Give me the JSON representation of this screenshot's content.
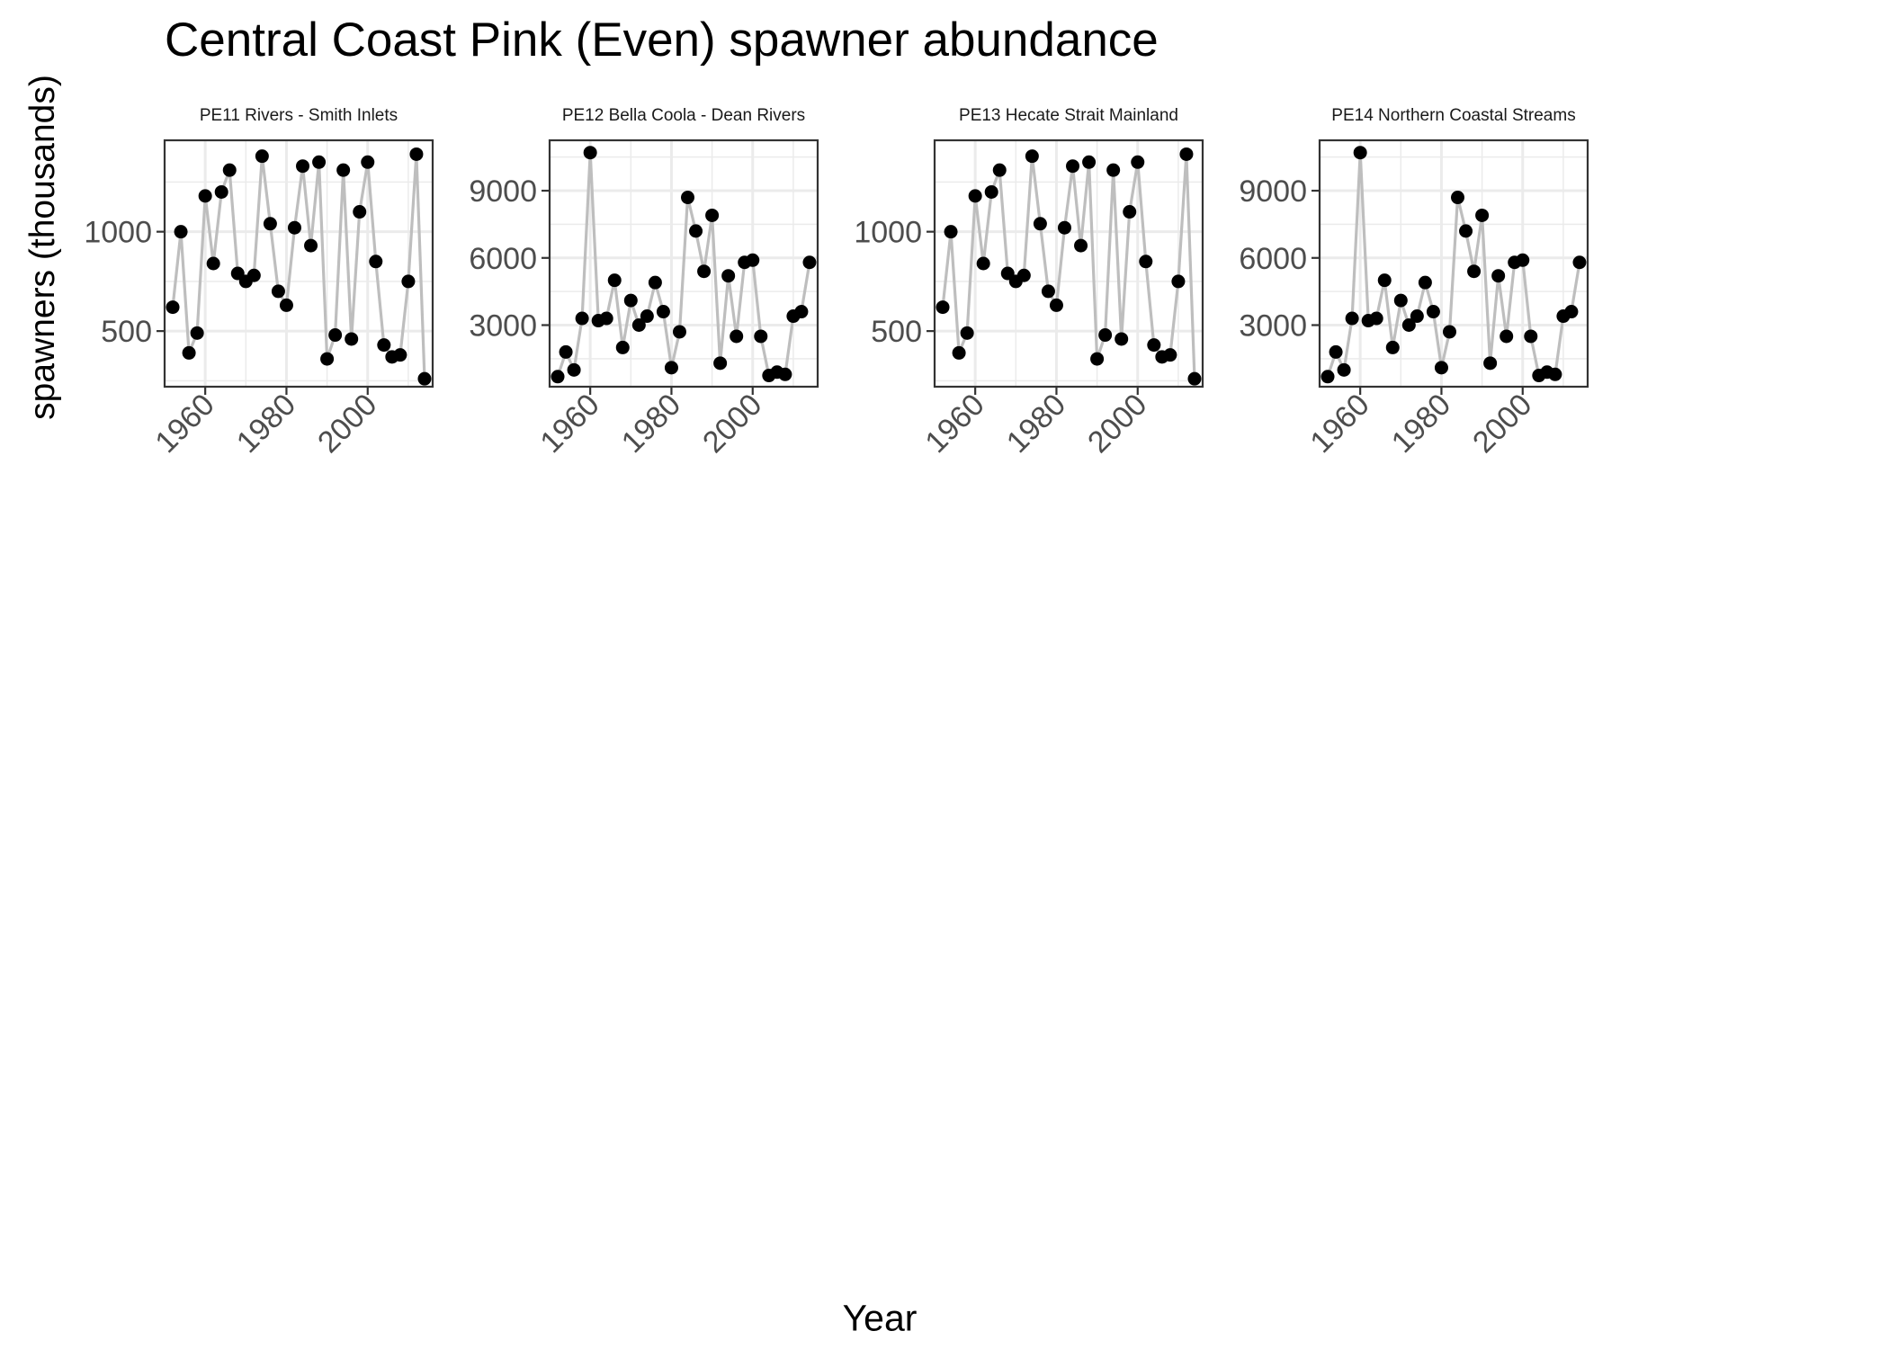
{
  "title": "Central Coast Pink (Even) spawner abundance",
  "xlabel": "Year",
  "ylabel": "spawners (thousands)",
  "colors": {
    "line": "#BEBEBE",
    "point": "#000000",
    "grid": "#EBEBEB",
    "panel_border": "#333333",
    "tick_text": "#4D4D4D",
    "strip_text": "#1A1A1A"
  },
  "chart_data": [
    {
      "type": "line",
      "panel": "PE11 Rivers - Smith Inlets",
      "xlim": [
        1950,
        2016
      ],
      "ylim": [
        220,
        1460
      ],
      "x_ticks": [
        1960,
        1980,
        2000
      ],
      "y_ticks": [
        500,
        1000
      ],
      "x": [
        1952,
        1954,
        1956,
        1958,
        1960,
        1962,
        1964,
        1966,
        1968,
        1970,
        1972,
        1974,
        1976,
        1978,
        1980,
        1982,
        1984,
        1986,
        1988,
        1990,
        1992,
        1994,
        1996,
        1998,
        2000,
        2002,
        2004,
        2006,
        2008,
        2010,
        2012,
        2014
      ],
      "y": [
        620,
        1000,
        390,
        490,
        1180,
        840,
        1200,
        1310,
        790,
        750,
        780,
        1380,
        1040,
        700,
        630,
        1020,
        1330,
        930,
        1350,
        360,
        480,
        1310,
        460,
        1100,
        1350,
        850,
        430,
        370,
        380,
        750,
        1390,
        260
      ]
    },
    {
      "type": "line",
      "panel": "PE12 Bella Coola - Dean Rivers",
      "xlim": [
        1950,
        2016
      ],
      "ylim": [
        250,
        11250
      ],
      "x_ticks": [
        1960,
        1980,
        2000
      ],
      "y_ticks": [
        3000,
        6000,
        9000
      ],
      "x": [
        1952,
        1954,
        1956,
        1958,
        1960,
        1962,
        1964,
        1966,
        1968,
        1970,
        1972,
        1974,
        1976,
        1978,
        1980,
        1982,
        1984,
        1986,
        1988,
        1990,
        1992,
        1994,
        1996,
        1998,
        2000,
        2002,
        2004,
        2006,
        2008,
        2010,
        2012,
        2014
      ],
      "y": [
        700,
        1800,
        1000,
        3300,
        10700,
        3200,
        3300,
        5000,
        2000,
        4100,
        3000,
        3400,
        4900,
        3600,
        1100,
        2700,
        8700,
        7200,
        5400,
        7900,
        1300,
        5200,
        2500,
        5800,
        5900,
        2500,
        750,
        900,
        800,
        3400,
        3600,
        5800
      ]
    },
    {
      "type": "line",
      "panel": "PE13 Hecate Strait Mainland",
      "xlim": [
        1950,
        2016
      ],
      "ylim": [
        220,
        1460
      ],
      "x_ticks": [
        1960,
        1980,
        2000
      ],
      "y_ticks": [
        500,
        1000
      ],
      "x": [
        1952,
        1954,
        1956,
        1958,
        1960,
        1962,
        1964,
        1966,
        1968,
        1970,
        1972,
        1974,
        1976,
        1978,
        1980,
        1982,
        1984,
        1986,
        1988,
        1990,
        1992,
        1994,
        1996,
        1998,
        2000,
        2002,
        2004,
        2006,
        2008,
        2010,
        2012,
        2014
      ],
      "y": [
        620,
        1000,
        390,
        490,
        1180,
        840,
        1200,
        1310,
        790,
        750,
        780,
        1380,
        1040,
        700,
        630,
        1020,
        1330,
        930,
        1350,
        360,
        480,
        1310,
        460,
        1100,
        1350,
        850,
        430,
        370,
        380,
        750,
        1390,
        260
      ]
    },
    {
      "type": "line",
      "panel": "PE14 Northern Coastal Streams",
      "xlim": [
        1950,
        2016
      ],
      "ylim": [
        250,
        11250
      ],
      "x_ticks": [
        1960,
        1980,
        2000
      ],
      "y_ticks": [
        3000,
        6000,
        9000
      ],
      "x": [
        1952,
        1954,
        1956,
        1958,
        1960,
        1962,
        1964,
        1966,
        1968,
        1970,
        1972,
        1974,
        1976,
        1978,
        1980,
        1982,
        1984,
        1986,
        1988,
        1990,
        1992,
        1994,
        1996,
        1998,
        2000,
        2002,
        2004,
        2006,
        2008,
        2010,
        2012,
        2014
      ],
      "y": [
        700,
        1800,
        1000,
        3300,
        10700,
        3200,
        3300,
        5000,
        2000,
        4100,
        3000,
        3400,
        4900,
        3600,
        1100,
        2700,
        8700,
        7200,
        5400,
        7900,
        1300,
        5200,
        2500,
        5800,
        5900,
        2500,
        750,
        900,
        800,
        3400,
        3600,
        5800
      ]
    }
  ]
}
